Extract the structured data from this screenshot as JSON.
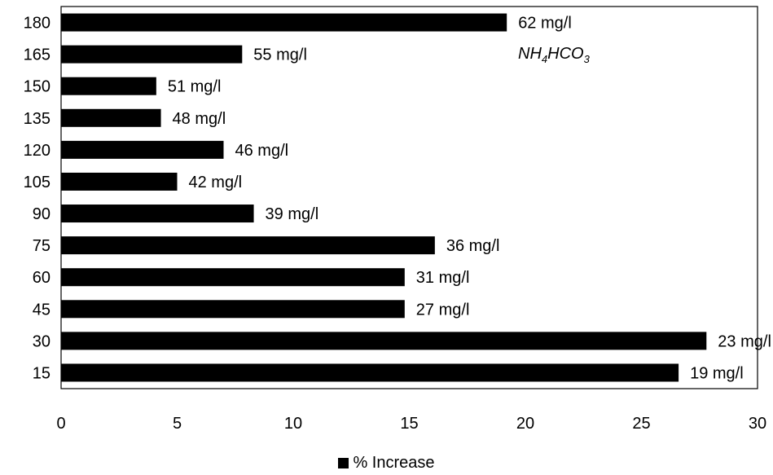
{
  "chart_data": {
    "type": "bar",
    "orientation": "horizontal",
    "categories": [
      "180",
      "165",
      "150",
      "135",
      "120",
      "105",
      "90",
      "75",
      "60",
      "45",
      "30",
      "15"
    ],
    "series": [
      {
        "name": "% Increase",
        "values": [
          19.2,
          7.8,
          4.1,
          4.3,
          7.0,
          5.0,
          8.3,
          16.1,
          14.8,
          14.8,
          27.8,
          26.6
        ],
        "data_labels": [
          "62 mg/l",
          "55 mg/l",
          "51 mg/l",
          "48 mg/l",
          "46 mg/l",
          "42 mg/l",
          "39 mg/l",
          "36 mg/l",
          "31 mg/l",
          "27 mg/l",
          "23 mg/l",
          "19 mg/l"
        ]
      }
    ],
    "xlim": [
      0,
      30
    ],
    "x_ticks": [
      "0",
      "5",
      "10",
      "15",
      "20",
      "25",
      "30"
    ],
    "xlabel": "",
    "ylabel": "",
    "grid": false,
    "legend_position": "bottom",
    "annotation": {
      "base": "NH",
      "sub1": "4",
      "mid": "HCO",
      "sub2": "3"
    },
    "bar_color": "#000000"
  }
}
